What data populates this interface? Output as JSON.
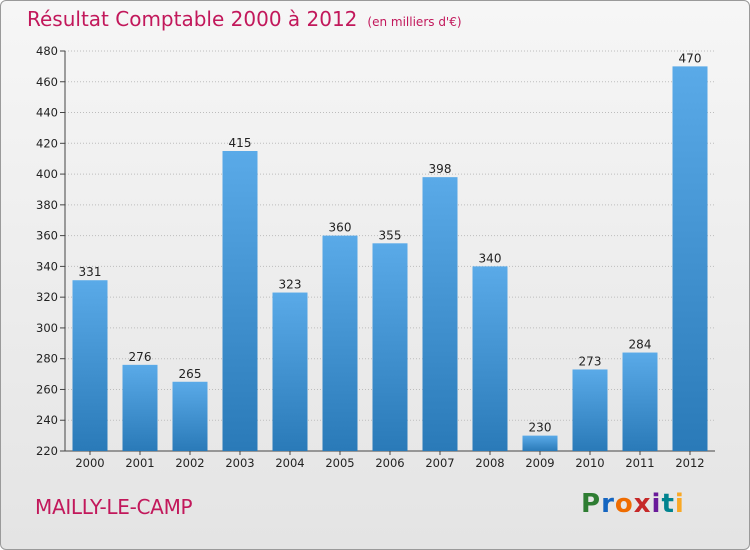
{
  "chart_data": {
    "type": "bar",
    "title": "Résultat Comptable 2000 à 2012",
    "subtitle": "(en milliers d'€)",
    "categories": [
      "2000",
      "2001",
      "2002",
      "2003",
      "2004",
      "2005",
      "2006",
      "2007",
      "2008",
      "2009",
      "2010",
      "2011",
      "2012"
    ],
    "values": [
      331,
      276,
      265,
      415,
      323,
      360,
      355,
      398,
      340,
      230,
      273,
      284,
      470
    ],
    "yticks": [
      220,
      240,
      260,
      280,
      300,
      320,
      340,
      360,
      380,
      400,
      420,
      440,
      460,
      480
    ],
    "ylim": [
      220,
      480
    ],
    "xlabel": "",
    "ylabel": "",
    "grid": true
  },
  "footer": {
    "commune": "MAILLY-LE-CAMP",
    "logo": {
      "letters": [
        "P",
        "r",
        "o",
        "x",
        "i",
        "t",
        "i"
      ],
      "colors": [
        "#2e7d32",
        "#1565c0",
        "#ef6c00",
        "#c62828",
        "#6a1b9a",
        "#00838f",
        "#f9a825"
      ]
    }
  },
  "colors": {
    "accent": "#c2185b",
    "bar_light": "#5aaae8",
    "bar_dark": "#2a7ab8",
    "grid": "#bdbdbd"
  }
}
